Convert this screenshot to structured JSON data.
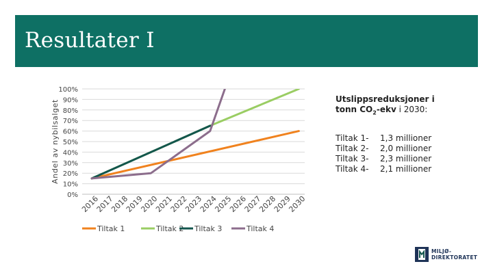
{
  "slide": {
    "title": "Resultater I",
    "header_color": "#0e7064"
  },
  "info": {
    "heading_line1": "Utslippsreduksjoner i",
    "heading_line2_pre": "tonn CO",
    "heading_sub": "2",
    "heading_line2_post": "-ekv",
    "heading_line2_tail": " i 2030:",
    "items": [
      {
        "name": "Tiltak 1-",
        "value": "1,3 millioner"
      },
      {
        "name": "Tiltak 2-",
        "value": "2,0 millioner"
      },
      {
        "name": "Tiltak 3-",
        "value": "2,3 millioner"
      },
      {
        "name": "Tiltak 4-",
        "value": "2,1 millioner"
      }
    ]
  },
  "logo": {
    "line1": "MILJØ-",
    "line2": "DIREKTORATET",
    "icon": "miljodirektoratet-logo-icon"
  },
  "chart_data": {
    "type": "line",
    "title": "",
    "xlabel": "",
    "ylabel": "Andel av nybilsalget",
    "x": [
      "2016",
      "2017",
      "2018",
      "2019",
      "2020",
      "2021",
      "2022",
      "2023",
      "2024",
      "2025",
      "2026",
      "2027",
      "2028",
      "2029",
      "2030"
    ],
    "y_ticks": [
      "0%",
      "10%",
      "20%",
      "30%",
      "40%",
      "50%",
      "60%",
      "70%",
      "80%",
      "90%",
      "100%"
    ],
    "ylim": [
      0,
      100
    ],
    "grid": "horizontal",
    "legend_position": "bottom",
    "series": [
      {
        "name": "Tiltak 1",
        "color": "#f0821e",
        "points": [
          [
            "2016",
            15
          ],
          [
            "2030",
            60
          ]
        ]
      },
      {
        "name": "Tiltak 2",
        "color": "#9acd63",
        "points": [
          [
            "2016",
            15
          ],
          [
            "2024",
            65
          ],
          [
            "2030",
            100
          ]
        ]
      },
      {
        "name": "Tiltak 3",
        "color": "#13564d",
        "points": [
          [
            "2016",
            15
          ],
          [
            "2024",
            65
          ]
        ]
      },
      {
        "name": "Tiltak 4",
        "color": "#8c6d8c",
        "points": [
          [
            "2016",
            15
          ],
          [
            "2020",
            20
          ],
          [
            "2024",
            60
          ],
          [
            "2025",
            100
          ]
        ]
      }
    ]
  }
}
